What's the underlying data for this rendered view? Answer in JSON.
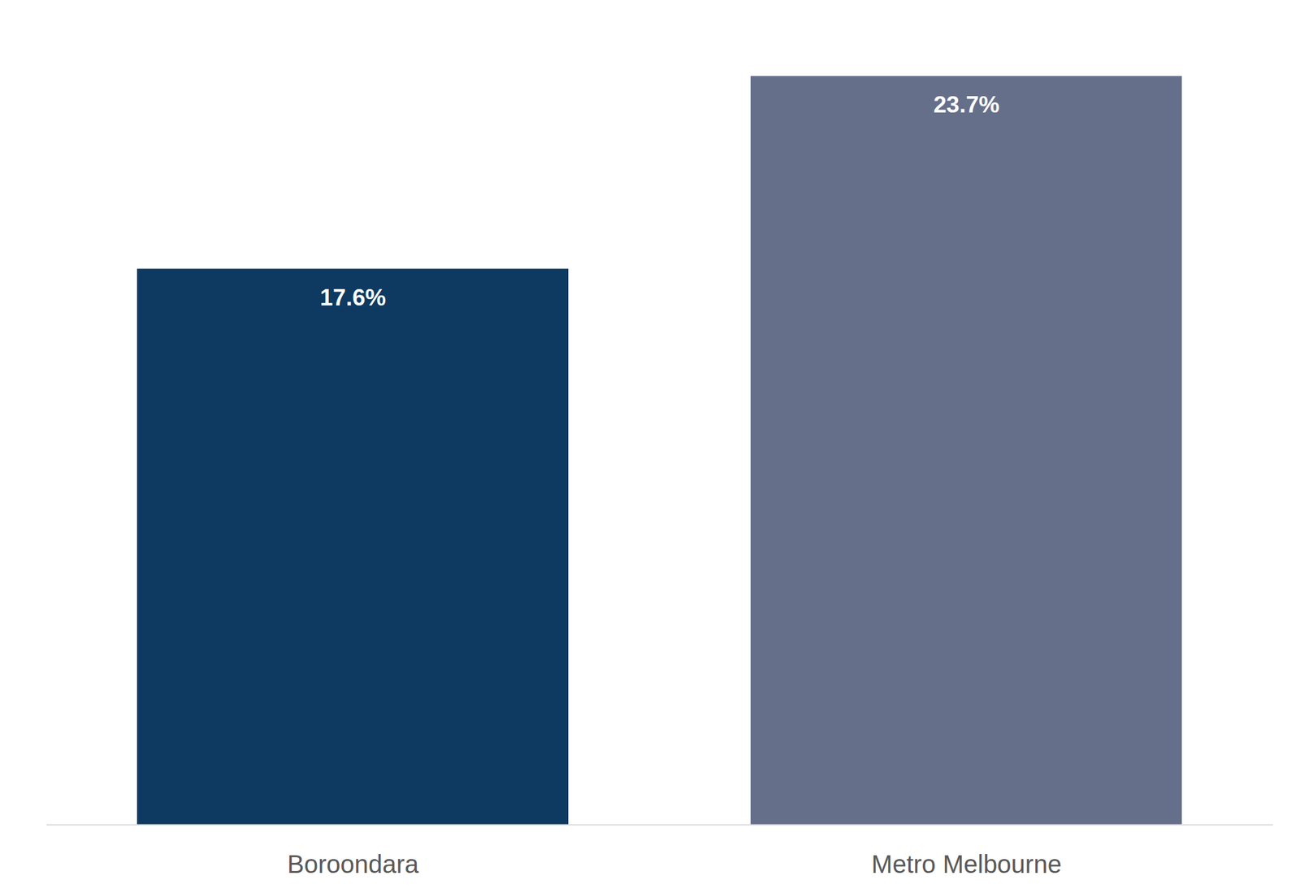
{
  "chart_data": {
    "type": "bar",
    "categories": [
      "Boroondara",
      "Metro Melbourne"
    ],
    "values": [
      17.6,
      23.7
    ],
    "value_labels": [
      "17.6%",
      "23.7%"
    ],
    "colors": [
      "#0e3a61",
      "#666f8a"
    ],
    "ylim": [
      0,
      23.7
    ],
    "data_labels": true,
    "tick_labels": "x",
    "grid": false
  }
}
